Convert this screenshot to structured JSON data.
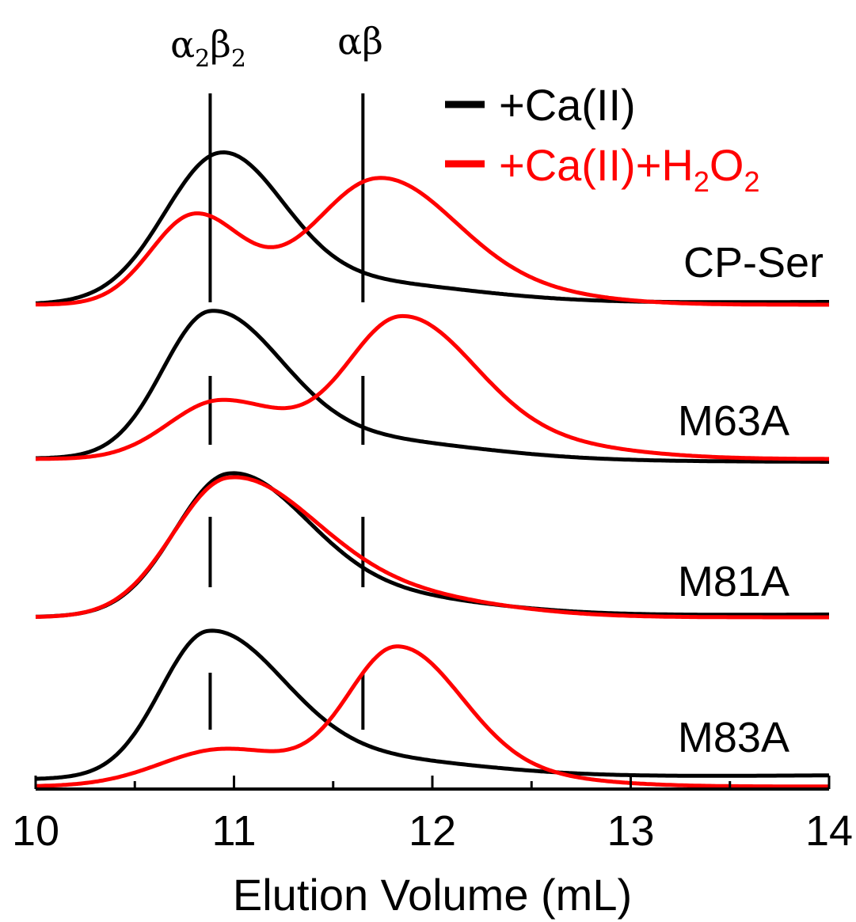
{
  "chart_data": {
    "type": "line",
    "title": "",
    "xlabel": "Elution Volume (mL)",
    "ylabel": "",
    "xlim": [
      10,
      14
    ],
    "x_ticks": [
      "10",
      "11",
      "12",
      "13",
      "14"
    ],
    "grid": false,
    "legend_position": "top-right",
    "legend": [
      {
        "series": "ca",
        "label": "+Ca(II)",
        "color": "#000000"
      },
      {
        "series": "h2o2",
        "label_main": "+Ca(II)+H",
        "sub1": "2",
        "mid": "O",
        "sub2": "2",
        "color": "#ff0000"
      }
    ],
    "reference_lines": [
      {
        "name": "a2b2",
        "x": 10.88,
        "label_a": "α",
        "sub_a": "2",
        "label_b": "β",
        "sub_b": "2"
      },
      {
        "name": "ab",
        "x": 11.65,
        "label": "αβ"
      }
    ],
    "panels": [
      {
        "name": "cp-ser",
        "label": "CP-Ser",
        "ca": {
          "base_start": 0.0,
          "base_end": 0.02,
          "peaks": [
            [
              10.93,
              0.28,
              0.31,
              1.0
            ],
            [
              11.55,
              0.6,
              0.6,
              0.16
            ]
          ]
        },
        "h2o2": {
          "base_start": 0.0,
          "base_end": 0.0,
          "peaks": [
            [
              10.8,
              0.22,
              0.24,
              0.64
            ],
            [
              11.72,
              0.33,
              0.38,
              0.87
            ],
            [
              12.3,
              0.45,
              0.45,
              0.1
            ]
          ]
        }
      },
      {
        "name": "m63a",
        "label": "M63A",
        "ca": {
          "base_start": 0.0,
          "base_end": -0.02,
          "peaks": [
            [
              10.88,
              0.24,
              0.35,
              1.0
            ],
            [
              11.6,
              0.6,
              0.6,
              0.15
            ]
          ]
        },
        "h2o2": {
          "base_start": 0.0,
          "base_end": 0.0,
          "peaks": [
            [
              10.93,
              0.26,
              0.32,
              0.42
            ],
            [
              11.84,
              0.28,
              0.36,
              0.96
            ],
            [
              12.4,
              0.5,
              0.5,
              0.12
            ]
          ]
        }
      },
      {
        "name": "m81a",
        "label": "M81A",
        "ca": {
          "base_start": 0.0,
          "base_end": 0.02,
          "peaks": [
            [
              10.97,
              0.27,
              0.38,
              0.95
            ],
            [
              11.6,
              0.55,
              0.6,
              0.16
            ]
          ]
        },
        "h2o2": {
          "base_start": 0.0,
          "base_end": 0.0,
          "peaks": [
            [
              10.97,
              0.28,
              0.42,
              0.95
            ],
            [
              11.7,
              0.5,
              0.55,
              0.17
            ]
          ]
        }
      },
      {
        "name": "m83a",
        "label": "M83A",
        "ca": {
          "base_start": 0.0,
          "base_end": 0.03,
          "peaks": [
            [
              10.87,
              0.24,
              0.37,
              1.0
            ],
            [
              11.6,
              0.6,
              0.6,
              0.14
            ]
          ]
        },
        "h2o2": {
          "base_start": -0.05,
          "base_end": -0.05,
          "peaks": [
            [
              10.95,
              0.32,
              0.35,
              0.27
            ],
            [
              11.82,
              0.25,
              0.32,
              0.96
            ],
            [
              12.3,
              0.4,
              0.45,
              0.08
            ]
          ]
        }
      }
    ]
  }
}
